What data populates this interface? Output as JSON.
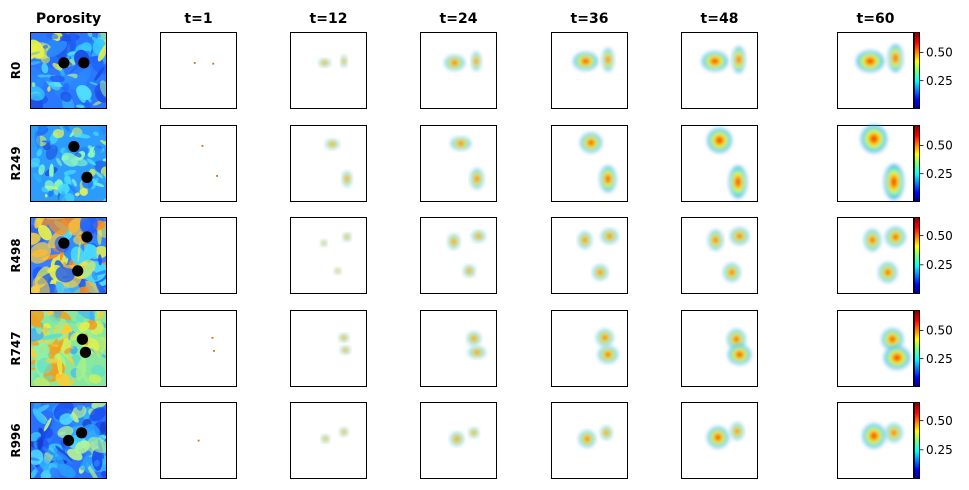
{
  "chart_data": {
    "type": "heatmap",
    "first_column_title": "Porosity",
    "time_steps": [
      "t=1",
      "t=12",
      "t=24",
      "t=36",
      "t=48",
      "t=60"
    ],
    "colormap": "jet",
    "colorbar_ticks": [
      [
        "0.50",
        "0.25"
      ],
      [
        "0.50",
        "0.25"
      ],
      [
        "0.50",
        "0.25"
      ],
      [
        "0.50",
        "0.25"
      ],
      [
        "0.50",
        "0.25"
      ]
    ],
    "colorbar_tick_values": [
      [
        0.5,
        0.25
      ],
      [
        0.5,
        0.25
      ],
      [
        0.5,
        0.25
      ],
      [
        0.5,
        0.25
      ],
      [
        0.5,
        0.25
      ]
    ],
    "colorbar_max": [
      0.68,
      0.68,
      0.66,
      0.68,
      0.66
    ],
    "realizations": [
      {
        "label": "R0",
        "wells": [
          [
            0.44,
            0.4
          ],
          [
            0.7,
            0.4
          ]
        ]
      },
      {
        "label": "R249",
        "wells": [
          [
            0.57,
            0.28
          ],
          [
            0.74,
            0.68
          ]
        ]
      },
      {
        "label": "R498",
        "wells": [
          [
            0.44,
            0.34
          ],
          [
            0.74,
            0.26
          ],
          [
            0.62,
            0.7
          ]
        ]
      },
      {
        "label": "R747",
        "wells": [
          [
            0.68,
            0.38
          ],
          [
            0.72,
            0.55
          ]
        ]
      },
      {
        "label": "R996",
        "wells": [
          [
            0.5,
            0.5
          ],
          [
            0.67,
            0.4
          ]
        ]
      }
    ],
    "plumes": [
      [
        [
          [
            0.45,
            0.4,
            0.004,
            0.003,
            1
          ],
          [
            0.69,
            0.41,
            0.004,
            0.003,
            1
          ]
        ],
        [
          [
            0.45,
            0.4,
            0.07,
            0.05,
            1
          ],
          [
            0.7,
            0.38,
            0.04,
            0.07,
            1
          ]
        ],
        [
          [
            0.45,
            0.4,
            0.12,
            0.09,
            1
          ],
          [
            0.73,
            0.38,
            0.06,
            0.11,
            1
          ]
        ],
        [
          [
            0.45,
            0.38,
            0.15,
            0.11,
            1
          ],
          [
            0.74,
            0.36,
            0.07,
            0.14,
            1
          ]
        ],
        [
          [
            0.44,
            0.38,
            0.16,
            0.12,
            1
          ],
          [
            0.75,
            0.36,
            0.08,
            0.16,
            1
          ]
        ],
        [
          [
            0.43,
            0.38,
            0.17,
            0.13,
            1
          ],
          [
            0.76,
            0.34,
            0.09,
            0.17,
            1
          ]
        ]
      ],
      [
        [
          [
            0.55,
            0.27,
            0.02,
            0.015,
            1
          ],
          [
            0.74,
            0.66,
            0.004,
            0.003,
            1
          ]
        ],
        [
          [
            0.55,
            0.25,
            0.08,
            0.06,
            1
          ],
          [
            0.74,
            0.7,
            0.06,
            0.09,
            1
          ]
        ],
        [
          [
            0.53,
            0.24,
            0.12,
            0.08,
            1
          ],
          [
            0.74,
            0.7,
            0.08,
            0.12,
            1
          ]
        ],
        [
          [
            0.52,
            0.23,
            0.13,
            0.12,
            1
          ],
          [
            0.74,
            0.7,
            0.1,
            0.16,
            1
          ]
        ],
        [
          [
            0.5,
            0.2,
            0.15,
            0.15,
            1
          ],
          [
            0.74,
            0.74,
            0.11,
            0.2,
            1
          ]
        ],
        [
          [
            0.48,
            0.18,
            0.16,
            0.17,
            1
          ],
          [
            0.74,
            0.74,
            0.12,
            0.22,
            1
          ]
        ]
      ],
      [
        [],
        [
          [
            0.44,
            0.34,
            0.04,
            0.04,
            1
          ],
          [
            0.74,
            0.26,
            0.05,
            0.05,
            1
          ],
          [
            0.62,
            0.7,
            0.04,
            0.04,
            1
          ]
        ],
        [
          [
            0.44,
            0.32,
            0.07,
            0.09,
            1
          ],
          [
            0.76,
            0.25,
            0.08,
            0.07,
            1
          ],
          [
            0.64,
            0.7,
            0.07,
            0.07,
            1
          ]
        ],
        [
          [
            0.44,
            0.3,
            0.08,
            0.1,
            1
          ],
          [
            0.76,
            0.25,
            0.1,
            0.09,
            1
          ],
          [
            0.64,
            0.72,
            0.09,
            0.09,
            1
          ]
        ],
        [
          [
            0.45,
            0.3,
            0.09,
            0.12,
            1
          ],
          [
            0.76,
            0.25,
            0.11,
            0.1,
            1
          ],
          [
            0.66,
            0.72,
            0.1,
            0.11,
            1
          ]
        ],
        [
          [
            0.46,
            0.3,
            0.1,
            0.13,
            1
          ],
          [
            0.76,
            0.26,
            0.12,
            0.12,
            1
          ],
          [
            0.66,
            0.72,
            0.11,
            0.12,
            1
          ]
        ]
      ],
      [
        [
          [
            0.68,
            0.36,
            0.003,
            0.003,
            1
          ],
          [
            0.7,
            0.53,
            0.003,
            0.003,
            1
          ]
        ],
        [
          [
            0.7,
            0.36,
            0.06,
            0.05,
            1
          ],
          [
            0.72,
            0.52,
            0.06,
            0.05,
            1
          ]
        ],
        [
          [
            0.7,
            0.37,
            0.08,
            0.08,
            1
          ],
          [
            0.74,
            0.55,
            0.1,
            0.07,
            1
          ]
        ],
        [
          [
            0.7,
            0.36,
            0.1,
            0.1,
            1
          ],
          [
            0.74,
            0.58,
            0.12,
            0.1,
            1
          ]
        ],
        [
          [
            0.72,
            0.38,
            0.11,
            0.12,
            1
          ],
          [
            0.76,
            0.58,
            0.14,
            0.12,
            1
          ]
        ],
        [
          [
            0.72,
            0.38,
            0.13,
            0.13,
            1
          ],
          [
            0.78,
            0.62,
            0.16,
            0.14,
            1
          ]
        ]
      ],
      [
        [
          [
            0.5,
            0.5,
            0.005,
            0.004,
            1
          ]
        ],
        [
          [
            0.46,
            0.48,
            0.05,
            0.05,
            1
          ],
          [
            0.7,
            0.39,
            0.05,
            0.05,
            1
          ]
        ],
        [
          [
            0.48,
            0.48,
            0.08,
            0.08,
            1
          ],
          [
            0.7,
            0.4,
            0.06,
            0.06,
            1
          ]
        ],
        [
          [
            0.47,
            0.48,
            0.1,
            0.1,
            1
          ],
          [
            0.72,
            0.4,
            0.07,
            0.08,
            1
          ]
        ],
        [
          [
            0.48,
            0.46,
            0.13,
            0.13,
            1
          ],
          [
            0.73,
            0.38,
            0.08,
            0.1,
            1
          ]
        ],
        [
          [
            0.48,
            0.44,
            0.14,
            0.15,
            1
          ],
          [
            0.74,
            0.4,
            0.1,
            0.11,
            1
          ]
        ]
      ]
    ]
  }
}
